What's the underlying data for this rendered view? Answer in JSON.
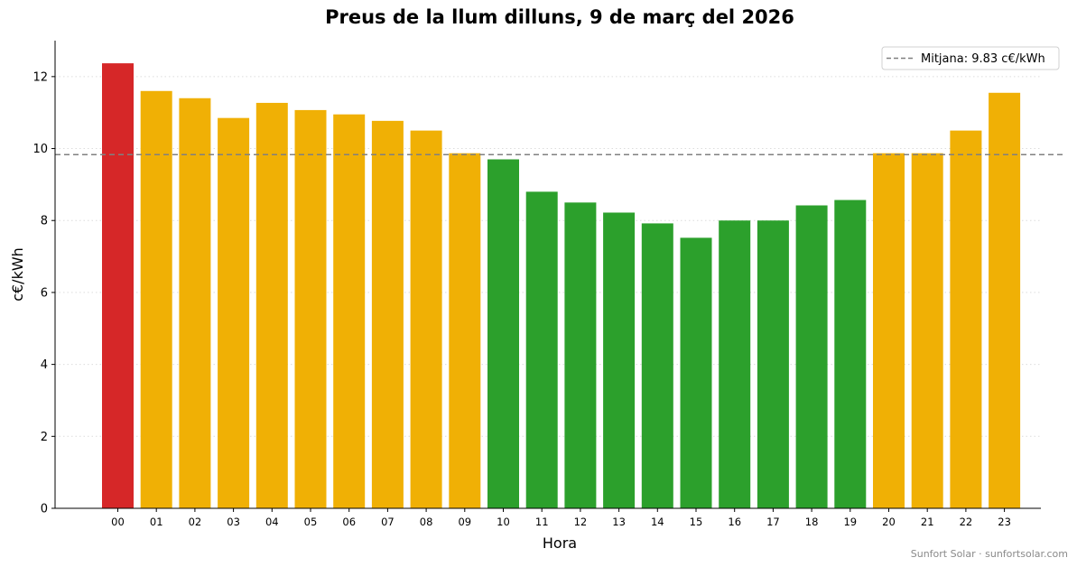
{
  "chart_data": {
    "type": "bar",
    "title": "Preus de la llum dilluns, 9 de març del 2026",
    "xlabel": "Hora",
    "ylabel": "c€/kWh",
    "ylim": [
      0,
      13
    ],
    "yticks": [
      0,
      2,
      4,
      6,
      8,
      10,
      12
    ],
    "grid": "horizontal-dotted",
    "categories": [
      "00",
      "01",
      "02",
      "03",
      "04",
      "05",
      "06",
      "07",
      "08",
      "09",
      "10",
      "11",
      "12",
      "13",
      "14",
      "15",
      "16",
      "17",
      "18",
      "19",
      "20",
      "21",
      "22",
      "23"
    ],
    "values": [
      12.37,
      11.6,
      11.4,
      10.85,
      11.27,
      11.07,
      10.95,
      10.77,
      10.5,
      9.87,
      9.7,
      8.8,
      8.5,
      8.22,
      7.92,
      7.52,
      8.0,
      8.0,
      8.42,
      8.57,
      9.87,
      9.87,
      10.5,
      11.55
    ],
    "bar_colors": [
      "#d62728",
      "#f0b005",
      "#f0b005",
      "#f0b005",
      "#f0b005",
      "#f0b005",
      "#f0b005",
      "#f0b005",
      "#f0b005",
      "#f0b005",
      "#2ca02c",
      "#2ca02c",
      "#2ca02c",
      "#2ca02c",
      "#2ca02c",
      "#2ca02c",
      "#2ca02c",
      "#2ca02c",
      "#2ca02c",
      "#2ca02c",
      "#f0b005",
      "#f0b005",
      "#f0b005",
      "#f0b005"
    ],
    "reference_line": {
      "value": 9.83,
      "label": "Mitjana: 9.83 c€/kWh",
      "color": "#808080",
      "style": "dashed"
    },
    "legend": {
      "placement": "top-right"
    }
  },
  "footer": "Sunfort Solar · sunfortsolar.com"
}
